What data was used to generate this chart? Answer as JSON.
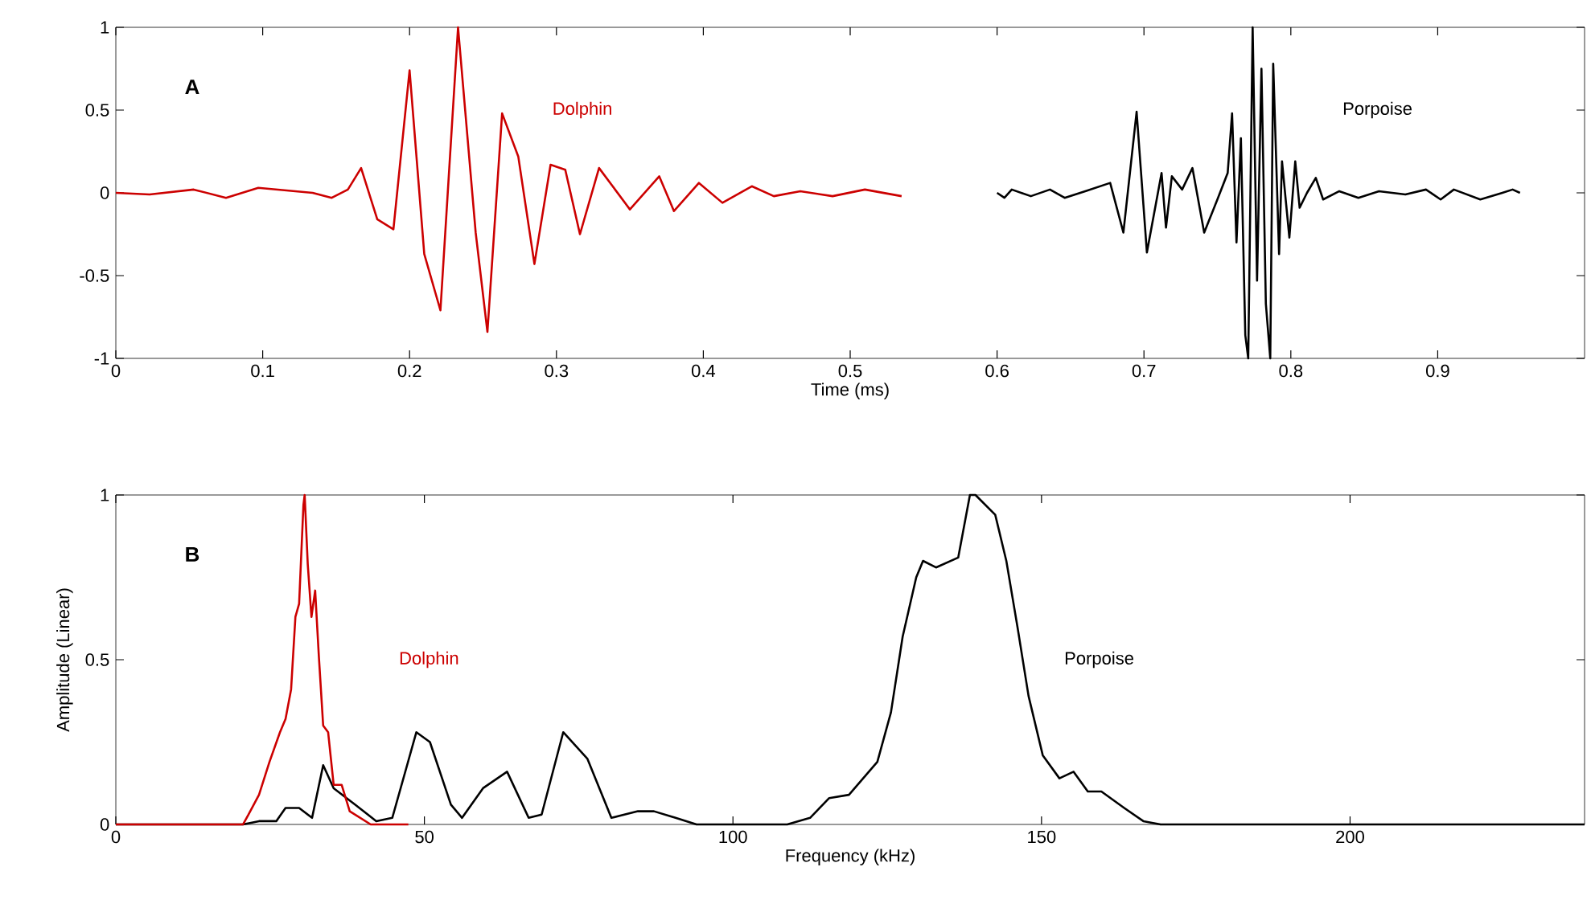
{
  "chart_data": [
    {
      "type": "line",
      "xlabel": "Time (ms)",
      "annotations": [
        "A"
      ],
      "xlim": [
        0,
        1
      ],
      "xticks": [
        0,
        0.1,
        0.2,
        0.3,
        0.4,
        0.5,
        0.6,
        0.7,
        0.8,
        0.9
      ],
      "ylim": [
        -1,
        1
      ],
      "yticks": [
        -1,
        -0.5,
        0,
        0.5,
        1
      ],
      "series": [
        {
          "name": "Dolphin",
          "color": "#cc0000",
          "x": [
            0,
            0.023,
            0.053,
            0.075,
            0.097,
            0.134,
            0.147,
            0.158,
            0.167,
            0.178,
            0.189,
            0.2,
            0.21,
            0.221,
            0.233,
            0.245,
            0.253,
            0.263,
            0.274,
            0.285,
            0.296,
            0.306,
            0.316,
            0.329,
            0.35,
            0.37,
            0.38,
            0.397,
            0.413,
            0.433,
            0.448,
            0.466,
            0.488,
            0.51,
            0.535
          ],
          "values": [
            0,
            -0.01,
            0.02,
            -0.03,
            0.03,
            0,
            -0.03,
            0.02,
            0.15,
            -0.16,
            -0.22,
            0.74,
            -0.37,
            -0.71,
            1.0,
            -0.24,
            -0.84,
            0.48,
            0.22,
            -0.43,
            0.17,
            0.14,
            -0.25,
            0.15,
            -0.1,
            0.1,
            -0.11,
            0.06,
            -0.06,
            0.04,
            -0.02,
            0.01,
            -0.02,
            0.02,
            -0.02
          ]
        },
        {
          "name": "Porpoise",
          "color": "#000000",
          "x": [
            0.6,
            0.605,
            0.61,
            0.623,
            0.636,
            0.646,
            0.66,
            0.677,
            0.686,
            0.695,
            0.702,
            0.712,
            0.715,
            0.719,
            0.726,
            0.733,
            0.741,
            0.75,
            0.757,
            0.76,
            0.763,
            0.766,
            0.769,
            0.771,
            0.774,
            0.777,
            0.78,
            0.783,
            0.786,
            0.788,
            0.792,
            0.794,
            0.799,
            0.803,
            0.806,
            0.811,
            0.817,
            0.822,
            0.833,
            0.846,
            0.86,
            0.878,
            0.892,
            0.902,
            0.911,
            0.929,
            0.944,
            0.951,
            0.956
          ],
          "values": [
            0,
            -0.03,
            0.02,
            -0.02,
            0.02,
            -0.03,
            0.01,
            0.06,
            -0.24,
            0.49,
            -0.36,
            0.12,
            -0.21,
            0.1,
            0.02,
            0.15,
            -0.24,
            -0.04,
            0.12,
            0.48,
            -0.3,
            0.33,
            -0.86,
            -1.0,
            1.0,
            -0.53,
            0.75,
            -0.67,
            -1.0,
            0.78,
            -0.37,
            0.19,
            -0.27,
            0.19,
            -0.09,
            0,
            0.09,
            -0.04,
            0.01,
            -0.03,
            0.01,
            -0.01,
            0.02,
            -0.04,
            0.02,
            -0.04,
            0,
            0.02,
            0
          ]
        }
      ]
    },
    {
      "type": "line",
      "xlabel": "Frequency (kHz)",
      "ylabel": "Amplitude (Linear)",
      "annotations": [
        "B"
      ],
      "xlim": [
        0,
        238
      ],
      "xticks": [
        0,
        50,
        100,
        150,
        200
      ],
      "ylim": [
        0,
        1
      ],
      "yticks": [
        0,
        0.5,
        1
      ],
      "series": [
        {
          "name": "Porpoise",
          "color": "#000000",
          "x": [
            0,
            20.6,
            23.2,
            26,
            27.5,
            29.7,
            31.8,
            33.6,
            35.3,
            38.8,
            42.2,
            44.8,
            48.7,
            50.9,
            54.3,
            56.1,
            59.5,
            63.4,
            66.9,
            69,
            72.5,
            76.4,
            80.3,
            84.6,
            87.2,
            90.7,
            94.1,
            100,
            108.8,
            112.5,
            115.6,
            118.8,
            123.4,
            125.6,
            127.5,
            129.7,
            130.8,
            132.9,
            136.5,
            138.4,
            139.3,
            142.5,
            144.3,
            146.1,
            147.9,
            150.2,
            152.9,
            155.2,
            157.5,
            159.7,
            163.4,
            166.5,
            169.3,
            238
          ],
          "values": [
            0,
            0,
            0.01,
            0.01,
            0.05,
            0.05,
            0.02,
            0.18,
            0.11,
            0.06,
            0.01,
            0.02,
            0.28,
            0.25,
            0.06,
            0.02,
            0.11,
            0.16,
            0.02,
            0.03,
            0.28,
            0.2,
            0.02,
            0.04,
            0.04,
            0.02,
            0,
            0,
            0,
            0.02,
            0.08,
            0.09,
            0.19,
            0.34,
            0.57,
            0.75,
            0.8,
            0.78,
            0.81,
            1.0,
            1.0,
            0.94,
            0.8,
            0.6,
            0.39,
            0.21,
            0.14,
            0.16,
            0.1,
            0.1,
            0.05,
            0.01,
            0,
            0
          ]
        },
        {
          "name": "Dolphin",
          "color": "#cc0000",
          "x": [
            0,
            20.6,
            21.5,
            23.2,
            24.9,
            26.6,
            27.5,
            28.4,
            29.1,
            29.7,
            30.4,
            30.6,
            31.1,
            31.7,
            32.3,
            32.9,
            33.6,
            34.4,
            35.3,
            36.6,
            37.9,
            41.3,
            47.4
          ],
          "values": [
            0,
            0,
            0.03,
            0.09,
            0.19,
            0.28,
            0.32,
            0.41,
            0.63,
            0.67,
            0.97,
            1.0,
            0.79,
            0.63,
            0.71,
            0.51,
            0.3,
            0.28,
            0.12,
            0.12,
            0.04,
            0,
            0
          ]
        }
      ]
    }
  ]
}
